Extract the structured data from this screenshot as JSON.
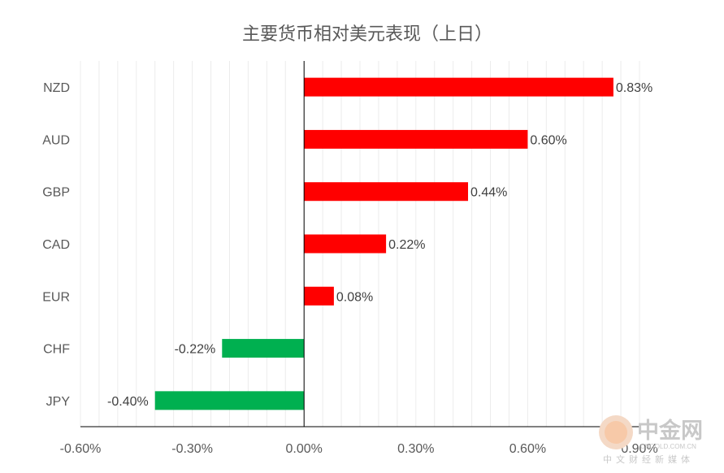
{
  "chart_data": {
    "type": "bar",
    "orientation": "horizontal",
    "title": "主要货币相对美元表现（上日）",
    "categories": [
      "NZD",
      "AUD",
      "GBP",
      "CAD",
      "EUR",
      "CHF",
      "JPY"
    ],
    "values": [
      0.83,
      0.6,
      0.44,
      0.22,
      0.08,
      -0.22,
      -0.4
    ],
    "data_labels": [
      "0.83%",
      "0.60%",
      "0.44%",
      "0.22%",
      "0.08%",
      "-0.22%",
      "-0.40%"
    ],
    "xlim": [
      -0.6,
      0.9
    ],
    "x_ticks": [
      -0.6,
      -0.3,
      0.0,
      0.3,
      0.6,
      0.9
    ],
    "x_tick_labels": [
      "-0.60%",
      "-0.30%",
      "0.00%",
      "0.30%",
      "0.60%",
      "0.90%"
    ],
    "grid": true,
    "legend": "none",
    "colors": {
      "positive": "#ff0000",
      "negative": "#00b050",
      "axis": "#000000",
      "grid": "#ececec",
      "text": "#595959"
    }
  },
  "watermark": {
    "name": "中金网",
    "subtitle": "中文财经新媒体",
    "url": "CNGOLD.COM.CN"
  }
}
